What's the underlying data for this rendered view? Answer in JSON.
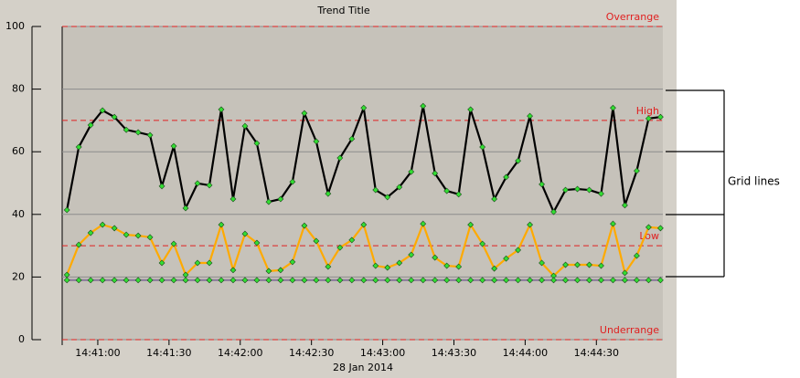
{
  "chart_data": {
    "type": "line",
    "title": "Trend Title",
    "xlabel": "28 Jan 2014",
    "x": [
      "14:40:47",
      "14:40:52",
      "14:40:57",
      "14:41:02",
      "14:41:07",
      "14:41:12",
      "14:41:17",
      "14:41:22",
      "14:41:27",
      "14:41:32",
      "14:41:37",
      "14:41:42",
      "14:41:47",
      "14:41:52",
      "14:41:57",
      "14:42:02",
      "14:42:07",
      "14:42:12",
      "14:42:17",
      "14:42:22",
      "14:42:27",
      "14:42:32",
      "14:42:37",
      "14:42:42",
      "14:42:47",
      "14:42:52",
      "14:42:57",
      "14:43:02",
      "14:43:07",
      "14:43:12",
      "14:43:17",
      "14:43:22",
      "14:43:27",
      "14:43:32",
      "14:43:37",
      "14:43:42",
      "14:43:47",
      "14:43:52",
      "14:43:57",
      "14:44:02",
      "14:44:07",
      "14:44:12",
      "14:44:17",
      "14:44:22",
      "14:44:27",
      "14:44:32",
      "14:44:37",
      "14:44:42",
      "14:44:47",
      "14:44:52",
      "14:44:57"
    ],
    "series": [
      {
        "color": "#000000",
        "values": [
          41.4,
          61.5,
          68.5,
          73.2,
          71.1,
          67,
          66.2,
          65.3,
          49,
          61.8,
          42,
          49.9,
          49.3,
          73.5,
          44.9,
          68.2,
          62.7,
          44,
          44.9,
          50.4,
          72.3,
          63.3,
          46.6,
          58,
          64.1,
          74,
          47.8,
          45.5,
          48.7,
          53.6,
          74.6,
          53.1,
          47.5,
          46.4,
          73.5,
          61.5,
          44.9,
          51.9,
          57.1,
          71.4,
          49.6,
          40.8,
          47.8,
          48.1,
          47.8,
          46.6,
          74,
          42.9,
          53.9,
          70.6,
          71.1
        ]
      },
      {
        "color": "#ffaa00",
        "values": [
          20.7,
          30.3,
          34.1,
          36.7,
          35.6,
          33.5,
          33.2,
          32.7,
          24.5,
          30.6,
          20.7,
          24.5,
          24.5,
          36.7,
          22.2,
          33.8,
          30.9,
          21.9,
          22.2,
          24.8,
          36.4,
          31.5,
          23.3,
          29.4,
          31.8,
          36.7,
          23.6,
          23,
          24.5,
          27.1,
          37,
          26.2,
          23.6,
          23.3,
          36.7,
          30.6,
          22.7,
          25.9,
          28.6,
          36.7,
          24.5,
          20.4,
          23.9,
          23.9,
          23.9,
          23.6,
          37,
          21.3,
          26.8,
          35.9,
          35.6
        ]
      },
      {
        "color": "#8a7a9a",
        "values": [
          19,
          19,
          19,
          19,
          19,
          19,
          19,
          19,
          19,
          19,
          19,
          19,
          19,
          19,
          19,
          19,
          19,
          19,
          19,
          19,
          19,
          19,
          19,
          19,
          19,
          19,
          19,
          19,
          19,
          19,
          19,
          19,
          19,
          19,
          19,
          19,
          19,
          19,
          19,
          19,
          19,
          19,
          19,
          19,
          19,
          19,
          19,
          19,
          19,
          19,
          19
        ]
      }
    ],
    "marker_color": "#33dd33",
    "xlim": [
      "14:40:45",
      "14:44:58"
    ],
    "xticks": [
      "14:41:00",
      "14:41:30",
      "14:42:00",
      "14:42:30",
      "14:43:00",
      "14:43:30",
      "14:44:00",
      "14:44:30"
    ],
    "ylim": [
      0,
      100
    ],
    "yticks": [
      0,
      20,
      40,
      60,
      80,
      100
    ],
    "grid": true,
    "reference_lines": [
      {
        "label": "Overrange",
        "value": 100,
        "color": "#e02020"
      },
      {
        "label": "High",
        "value": 70,
        "color": "#e02020"
      },
      {
        "label": "Low",
        "value": 30,
        "color": "#e02020"
      },
      {
        "label": "Underrange",
        "value": 0,
        "color": "#e02020"
      }
    ],
    "annotation": "Grid lines"
  }
}
